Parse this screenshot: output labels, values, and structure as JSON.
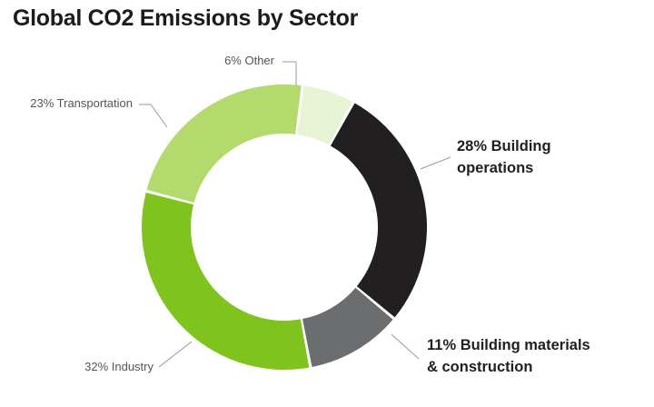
{
  "chart_data": {
    "type": "pie",
    "donut": true,
    "title": "Global CO2 Emissions by Sector",
    "slices": [
      {
        "label_lines": [
          "28% Building",
          "operations"
        ],
        "value": 28,
        "color": "#221f20",
        "emphasis": true
      },
      {
        "label_lines": [
          "11% Building materials",
          "& construction"
        ],
        "value": 11,
        "color": "#6c6d6f",
        "emphasis": true
      },
      {
        "label_lines": [
          "32% Industry"
        ],
        "value": 32,
        "color": "#80c31c",
        "emphasis": false
      },
      {
        "label_lines": [
          "23% Transportation"
        ],
        "value": 23,
        "color": "#b3da6c",
        "emphasis": false
      },
      {
        "label_lines": [
          "6% Other"
        ],
        "value": 6,
        "color": "#e6f4d4",
        "emphasis": false
      }
    ]
  }
}
